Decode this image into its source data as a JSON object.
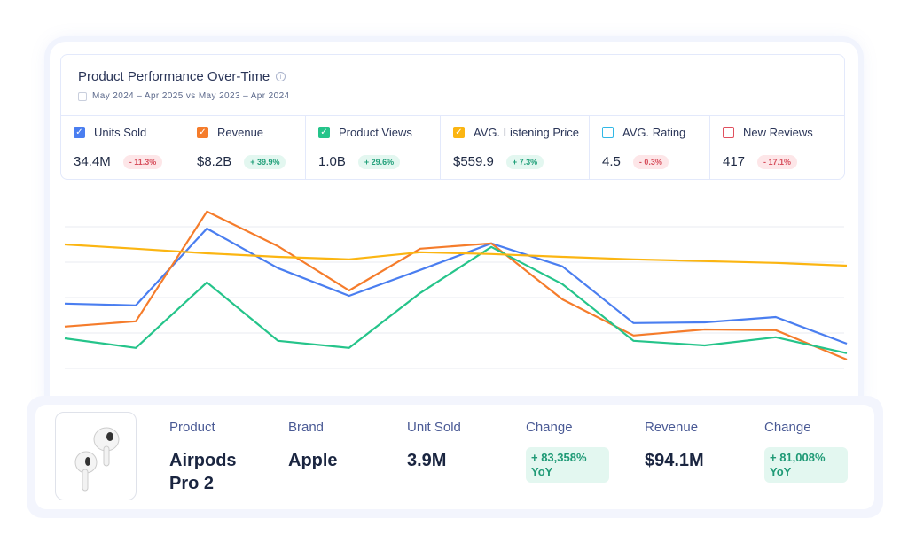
{
  "header": {
    "title": "Product Performance Over-Time",
    "date_range": "May 2024 – Apr 2025 vs May 2023 – Apr 2024"
  },
  "metrics": [
    {
      "label": "Units Sold",
      "value": "34.4M",
      "change": "- 11.3%",
      "trend": "negative",
      "checked": true,
      "color": "#4a7ef0"
    },
    {
      "label": "Revenue",
      "value": "$8.2B",
      "change": "+ 39.9%",
      "trend": "positive",
      "checked": true,
      "color": "#f57c2b"
    },
    {
      "label": "Product Views",
      "value": "1.0B",
      "change": "+ 29.6%",
      "trend": "positive",
      "checked": true,
      "color": "#25c48a"
    },
    {
      "label": "AVG. Listening Price",
      "value": "$559.9",
      "change": "+ 7.3%",
      "trend": "positive",
      "checked": true,
      "color": "#fbb512"
    },
    {
      "label": "AVG. Rating",
      "value": "4.5",
      "change": "- 0.3%",
      "trend": "negative",
      "checked": false,
      "color": "#31b8e6"
    },
    {
      "label": "New Reviews",
      "value": "417",
      "change": "- 17.1%",
      "trend": "negative",
      "checked": false,
      "color": "#e0505e"
    }
  ],
  "chart_data": {
    "type": "line",
    "grid": true,
    "legend": "none",
    "ylim": [
      0,
      4
    ],
    "series": [
      {
        "metric": "Units Sold",
        "color": "#4a7ef0",
        "values": [
          1.83,
          1.78,
          3.95,
          2.83,
          2.05,
          2.78,
          3.53,
          2.88,
          1.28,
          1.3,
          1.45,
          0.7
        ]
      },
      {
        "metric": "Revenue",
        "color": "#f57c2b",
        "values": [
          1.18,
          1.33,
          4.43,
          3.45,
          2.2,
          3.38,
          3.53,
          1.95,
          0.93,
          1.1,
          1.08,
          0.25
        ]
      },
      {
        "metric": "Product Views",
        "color": "#25c48a",
        "values": [
          0.85,
          0.58,
          2.43,
          0.78,
          0.58,
          2.13,
          3.43,
          2.38,
          0.78,
          0.65,
          0.88,
          0.43
        ]
      },
      {
        "metric": "AVG. Listening Price",
        "color": "#fbb512",
        "values": [
          3.5,
          3.38,
          3.25,
          3.15,
          3.08,
          3.28,
          3.23,
          3.15,
          3.08,
          3.03,
          2.98,
          2.9
        ]
      }
    ]
  },
  "product": {
    "headers": {
      "product": "Product",
      "brand": "Brand",
      "units": "Unit Sold",
      "change1": "Change",
      "revenue": "Revenue",
      "change2": "Change"
    },
    "name": "Airpods Pro 2",
    "brand": "Apple",
    "units": "3.9M",
    "units_change": "+ 83,358% YoY",
    "revenue": "$94.1M",
    "revenue_change": "+ 81,008% YoY"
  }
}
